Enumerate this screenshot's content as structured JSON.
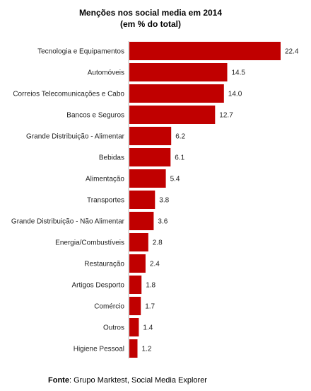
{
  "chart_data": {
    "type": "bar",
    "orientation": "horizontal",
    "title": "Menções nos social media em 2014",
    "subtitle": "(em % do total)",
    "categories": [
      "Tecnologia e Equipamentos",
      "Automóveis",
      "Correios Telecomunicações e Cabo",
      "Bancos e Seguros",
      "Grande Distribuição - Alimentar",
      "Bebidas",
      "Alimentação",
      "Transportes",
      "Grande Distribuição - Não Alimentar",
      "Energia/Combustíveis",
      "Restauração",
      "Artigos Desporto",
      "Comércio",
      "Outros",
      "Higiene Pessoal"
    ],
    "values": [
      22.4,
      14.5,
      14.0,
      12.7,
      6.2,
      6.1,
      5.4,
      3.8,
      3.6,
      2.8,
      2.4,
      1.8,
      1.7,
      1.4,
      1.2
    ],
    "value_labels": [
      "22.4",
      "14.5",
      "14.0",
      "12.7",
      "6.2",
      "6.1",
      "5.4",
      "3.8",
      "3.6",
      "2.8",
      "2.4",
      "1.8",
      "1.7",
      "1.4",
      "1.2"
    ],
    "bar_color": "#c00000",
    "xlim": [
      0,
      22.4
    ],
    "grid": false,
    "legend": "none"
  },
  "source": {
    "label": "Fonte",
    "text": ": Grupo Marktest, Social Media Explorer"
  }
}
